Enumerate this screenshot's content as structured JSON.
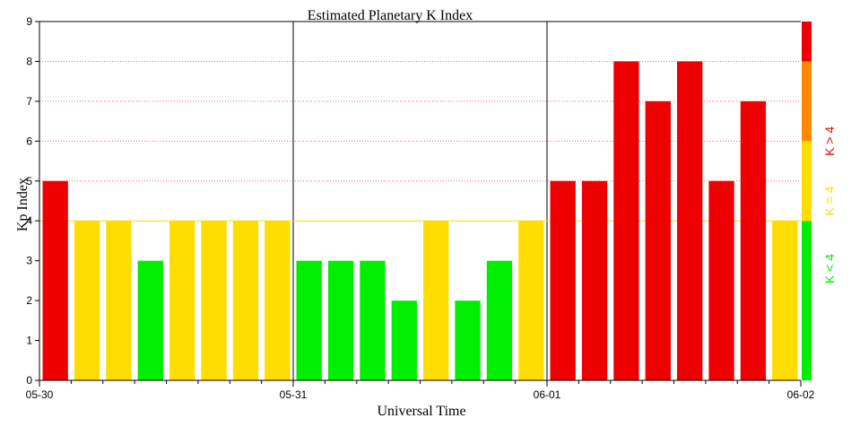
{
  "chart_data": {
    "type": "bar",
    "title": "Estimated Planetary K Index",
    "xlabel": "Universal Time",
    "ylabel": "Kp Index",
    "ylim": [
      0,
      9
    ],
    "yticks": [
      "0",
      "1",
      "2",
      "3",
      "4",
      "5",
      "6",
      "7",
      "8",
      "9"
    ],
    "x_tick_labels": [
      "05-30",
      "05-31",
      "06-01",
      "06-02"
    ],
    "interval_hours": 3,
    "values": [
      5,
      4,
      4,
      3,
      4,
      4,
      4,
      4,
      3,
      3,
      3,
      2,
      4,
      2,
      3,
      4,
      5,
      5,
      8,
      7,
      8,
      5,
      7,
      4
    ],
    "colors": {
      "below_4": "#00ee00",
      "equal_4": "#ffdd00",
      "above_4": "#ee0000",
      "storm_band": "#ff8800"
    },
    "legend": [
      {
        "label": "K < 4",
        "color": "#00ee00"
      },
      {
        "label": "K = 4",
        "color": "#ffdd00"
      },
      {
        "label": "K > 4",
        "color": "#ee0000"
      }
    ]
  }
}
